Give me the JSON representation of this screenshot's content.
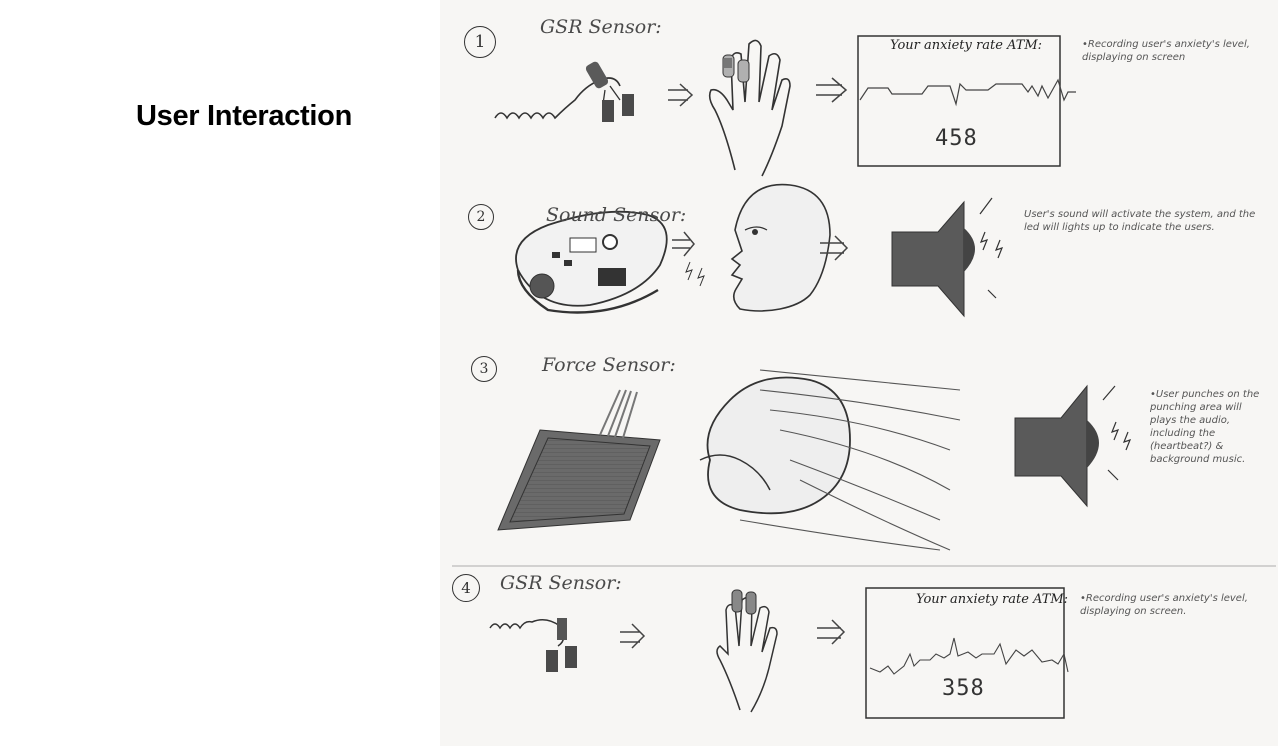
{
  "page": {
    "title": "User Interaction"
  },
  "steps": [
    {
      "number": "1",
      "label": "GSR Sensor:",
      "screen_title": "Your anxiety rate ATM:",
      "screen_value": "458",
      "note": "•Recording user's anxiety's level, displaying on screen"
    },
    {
      "number": "2",
      "label": "Sound Sensor:",
      "note": "User's sound will activate the system, and the led will lights up to indicate the users."
    },
    {
      "number": "3",
      "label": "Force Sensor:",
      "note": "•User punches on the punching area will plays the audio, including the (heartbeat?) & background music."
    },
    {
      "number": "4",
      "label": "GSR Sensor:",
      "screen_title": "Your anxiety rate ATM:",
      "screen_value": "358",
      "note": "•Recording user's anxiety's level, displaying on screen."
    }
  ],
  "colors": {
    "ink": "#333333",
    "pencil": "#555555",
    "shade": "#5a5a5a"
  }
}
